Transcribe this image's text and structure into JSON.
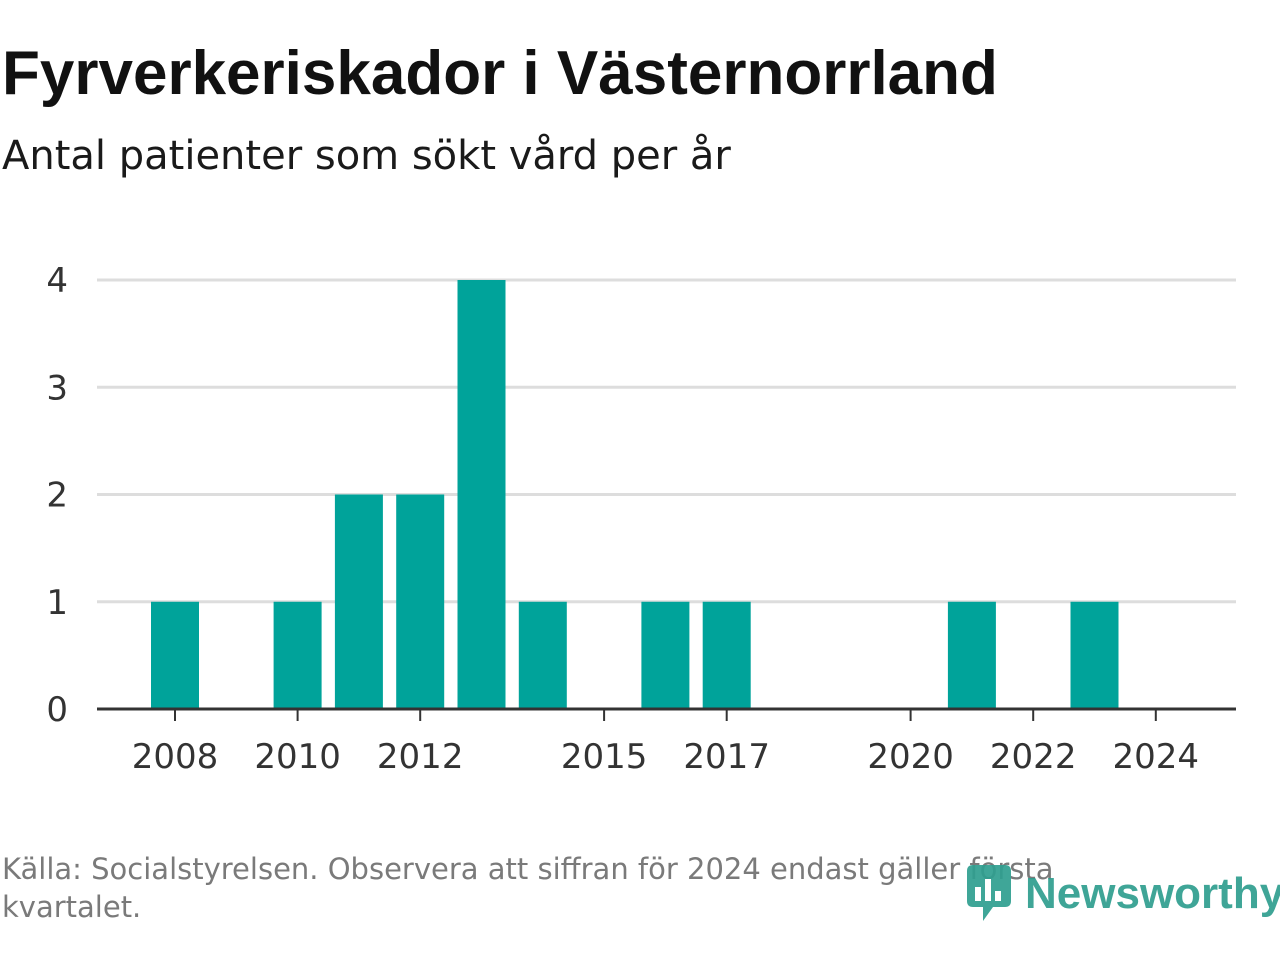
{
  "header": {
    "title": "Fyrverkeriskador i Västernorrland",
    "subtitle": "Antal patienter som sökt vård per år"
  },
  "footer": {
    "source": "Källa: Socialstyrelsen. Observera att siffran för 2024 endast gäller första kvartalet.",
    "brand": "Newsworthy"
  },
  "colors": {
    "bar": "#00a39a",
    "grid": "#dddddd",
    "axis": "#333333",
    "brand": "#2f9e8f"
  },
  "chart_data": {
    "type": "bar",
    "title": "Fyrverkeriskador i Västernorrland",
    "subtitle": "Antal patienter som sökt vård per år",
    "categories": [
      2008,
      2009,
      2010,
      2011,
      2012,
      2013,
      2014,
      2015,
      2016,
      2017,
      2018,
      2019,
      2020,
      2021,
      2022,
      2023,
      2024
    ],
    "values": [
      1,
      0,
      1,
      2,
      2,
      4,
      1,
      0,
      1,
      1,
      0,
      0,
      0,
      1,
      0,
      1,
      0
    ],
    "x_tick_labels": [
      2008,
      2010,
      2012,
      2015,
      2017,
      2020,
      2022,
      2024
    ],
    "y_ticks": [
      0,
      1,
      2,
      3,
      4
    ],
    "ylim": [
      0,
      4
    ],
    "grid": true,
    "legend": "none",
    "xlabel": "",
    "ylabel": ""
  }
}
